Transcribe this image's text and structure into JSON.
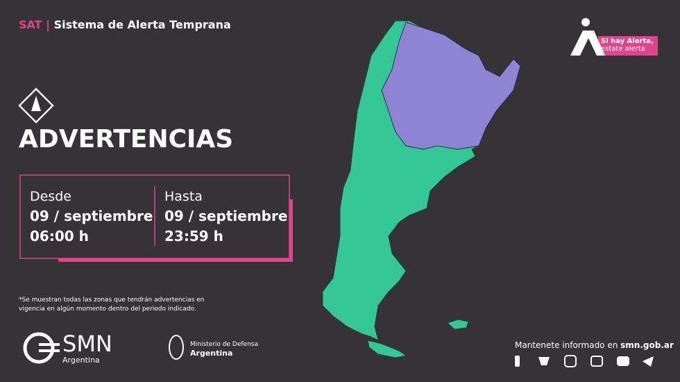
{
  "header": {
    "acronym": "SAT",
    "separator": "|",
    "title": "Sistema de Alerta Temprana"
  },
  "badge": {
    "line1": "Si hay Alerta,",
    "line2": "estate alerta"
  },
  "title": "ADVERTENCIAS",
  "period": {
    "from": {
      "label": "Desde",
      "date": "09 / septiembre",
      "time": "06:00 h"
    },
    "to": {
      "label": "Hasta",
      "date": "09 / septiembre",
      "time": "23:59 h"
    }
  },
  "footnote": [
    "*Se muestran todas las zonas que tendrán advertencias en",
    "vigencia en algún momento dentro del periodo indicado."
  ],
  "logos": {
    "smn": "SMN",
    "smn_sub": "Argentina",
    "ministry": "Ministerio de Defensa",
    "ministry_sub": "Argentina"
  },
  "contact": {
    "text": "Mantenete informado en ",
    "site": "smn.gob.ar"
  }
}
